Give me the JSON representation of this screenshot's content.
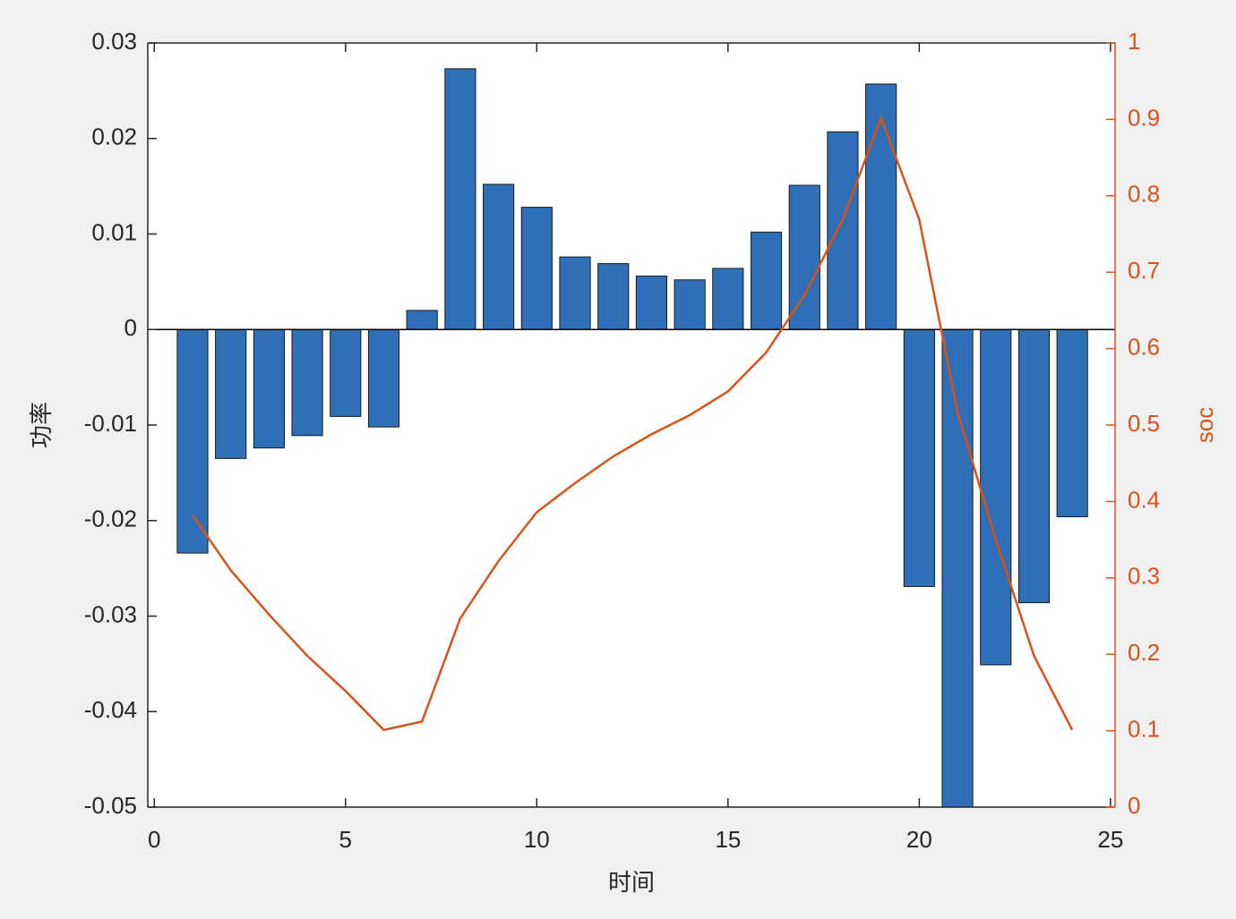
{
  "chart_data": {
    "type": "bar",
    "xlabel": "时间",
    "ylabel": "功率",
    "y2label": "soc",
    "x": [
      1,
      2,
      3,
      4,
      5,
      6,
      7,
      8,
      9,
      10,
      11,
      12,
      13,
      14,
      15,
      16,
      17,
      18,
      19,
      20,
      21,
      22,
      23,
      24
    ],
    "series": [
      {
        "type": "bar",
        "color": "#2f6fb7",
        "values": [
          -0.0234,
          -0.0135,
          -0.0124,
          -0.0111,
          -0.0091,
          -0.0102,
          0.002,
          0.0273,
          0.0152,
          0.0128,
          0.0076,
          0.0069,
          0.0056,
          0.0052,
          0.0064,
          0.0102,
          0.0151,
          0.0207,
          0.0257,
          -0.0269,
          -0.051,
          -0.0351,
          -0.0286,
          -0.0196
        ]
      },
      {
        "type": "line",
        "axis": "y2",
        "color": "#d95319",
        "values": [
          0.382,
          0.31,
          0.252,
          0.198,
          0.152,
          0.101,
          0.112,
          0.247,
          0.322,
          0.386,
          0.424,
          0.459,
          0.488,
          0.513,
          0.544,
          0.595,
          0.67,
          0.769,
          0.902,
          0.769,
          0.517,
          0.35,
          0.198,
          0.101
        ]
      }
    ],
    "xlim": [
      -0.17,
      25.12
    ],
    "xticks": [
      0,
      5,
      10,
      15,
      20,
      25
    ],
    "ylim": [
      -0.05,
      0.03
    ],
    "yticks": [
      -0.05,
      -0.04,
      -0.03,
      -0.02,
      -0.01,
      0,
      0.01,
      0.02,
      0.03
    ],
    "y2lim": [
      0,
      1
    ],
    "y2ticks": [
      0,
      0.1,
      0.2,
      0.3,
      0.4,
      0.5,
      0.6,
      0.7,
      0.8,
      0.9,
      1
    ],
    "y2color": "#d95319"
  }
}
